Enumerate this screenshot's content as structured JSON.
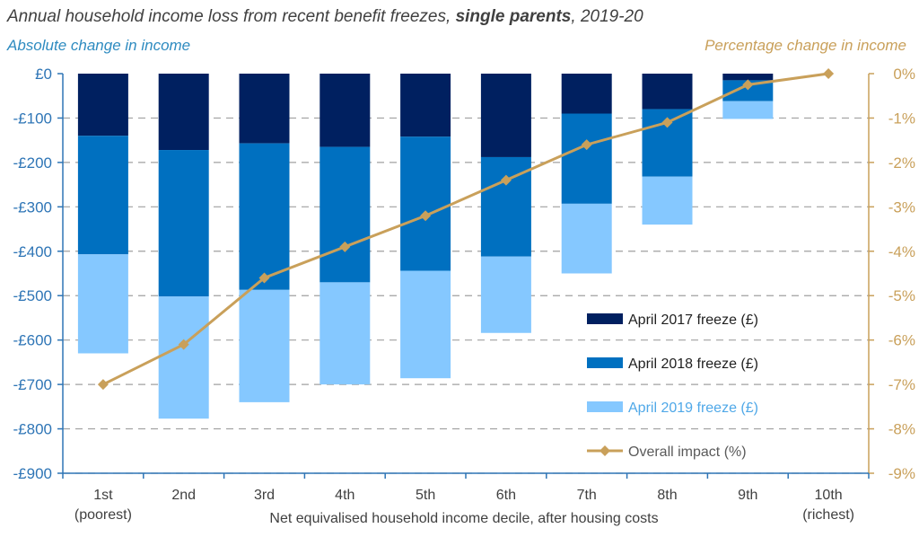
{
  "colors": {
    "freeze_2017": "#002060",
    "freeze_2018": "#0070C0",
    "freeze_2019": "#85C8FF",
    "overall": "#C9A05A",
    "left_axis": "#2E75B6",
    "left_title": "#2E8BC0",
    "right_axis": "#C9A05A",
    "grid": "#A0A0A0"
  },
  "chart_data": {
    "type": "bar",
    "stacked": true,
    "title_parts": [
      {
        "text": "Annual household income loss from recent benefit freezes, ",
        "bold": false
      },
      {
        "text": "single parents",
        "bold": true
      },
      {
        "text": ", 2019-20",
        "bold": false
      }
    ],
    "ylabel_left": "Absolute change in income",
    "ylabel_right": "Percentage change in income",
    "xlabel": "Net equivalised household income decile, after housing costs",
    "categories": [
      "1st",
      "2nd",
      "3rd",
      "4th",
      "5th",
      "6th",
      "7th",
      "8th",
      "9th",
      "10th"
    ],
    "category_sublabels": [
      "(poorest)",
      "",
      "",
      "",
      "",
      "",
      "",
      "",
      "",
      "(richest)"
    ],
    "ylim_left": [
      -900,
      0
    ],
    "ylim_right": [
      -9,
      0
    ],
    "y_ticks_left": [
      "£0",
      "-£100",
      "-£200",
      "-£300",
      "-£400",
      "-£500",
      "-£600",
      "-£700",
      "-£800",
      "-£900"
    ],
    "y_ticks_right": [
      "0%",
      "-1%",
      "-2%",
      "-3%",
      "-4%",
      "-5%",
      "-6%",
      "-7%",
      "-8%",
      "-9%"
    ],
    "grid": "dashed horizontal",
    "legend_position": "bottom-right",
    "series": [
      {
        "name": "April 2017 freeze (£)",
        "type": "bar",
        "values": [
          -140,
          -172,
          -157,
          -165,
          -142,
          -188,
          -90,
          -80,
          -15,
          0
        ]
      },
      {
        "name": "April 2018 freeze (£)",
        "type": "bar",
        "values": [
          -267,
          -330,
          -330,
          -305,
          -302,
          -224,
          -203,
          -152,
          -47,
          0
        ]
      },
      {
        "name": "April 2019 freeze (£)",
        "type": "bar",
        "values": [
          -223,
          -275,
          -253,
          -230,
          -242,
          -172,
          -157,
          -108,
          -40,
          0
        ]
      },
      {
        "name": "Overall impact (%)",
        "type": "line",
        "axis": "right",
        "values": [
          -7.0,
          -6.1,
          -4.6,
          -3.9,
          -3.2,
          -2.4,
          -1.6,
          -1.1,
          -0.25,
          0
        ]
      }
    ]
  }
}
